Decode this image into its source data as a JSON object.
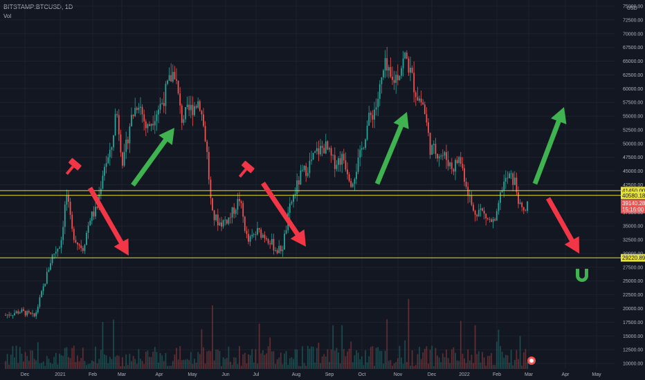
{
  "header": {
    "symbol": "BITSTAMP:BTCUSD",
    "interval": "1D",
    "volume_label": "Vol"
  },
  "axis": {
    "currency": "USD"
  },
  "price_labels": {
    "level1": "41450.00",
    "level2": "40580.18",
    "level3": "29220.89",
    "last_price": "39140.28",
    "countdown": "15:16:00"
  },
  "colors": {
    "bg": "#131722",
    "up": "#26a69a",
    "down": "#ef5350",
    "level": "#e8e23a",
    "arrow_up": "#3fb34f",
    "arrow_down": "#f23645"
  },
  "chart_data": {
    "type": "candlestick",
    "x_tick_labels": [
      "Dec",
      "2021",
      "Feb",
      "Mar",
      "Apr",
      "May",
      "Jun",
      "Jul",
      "Aug",
      "Sep",
      "Oct",
      "Nov",
      "Dec",
      "2022",
      "Feb",
      "Mar",
      "Apr",
      "May"
    ],
    "y_tick_labels": [
      "75000.00",
      "72500.00",
      "70000.00",
      "67500.00",
      "65000.00",
      "62500.00",
      "60000.00",
      "57500.00",
      "55000.00",
      "52500.00",
      "50000.00",
      "47500.00",
      "45000.00",
      "42500.00",
      "37500.00",
      "35000.00",
      "32500.00",
      "30000.00",
      "27500.00",
      "25000.00",
      "22500.00",
      "20000.00",
      "17500.00",
      "15000.00",
      "12500.00",
      "10000.00"
    ],
    "ylim": [
      9000,
      75500
    ],
    "horizontal_levels": [
      41450.0,
      40580.18,
      29220.89
    ],
    "last_price": 39140.28,
    "approx_price_path": [
      {
        "x": "Dec 2020",
        "y": 19000
      },
      {
        "x": "Jan 2021",
        "y": 29000
      },
      {
        "x": "Jan 2021 peak",
        "y": 41000
      },
      {
        "x": "Feb 2021",
        "y": 48000
      },
      {
        "x": "Mar 2021",
        "y": 58000
      },
      {
        "x": "Apr 2021",
        "y": 63500
      },
      {
        "x": "May 2021",
        "y": 58000
      },
      {
        "x": "Jun 2021",
        "y": 35000
      },
      {
        "x": "Jul 2021",
        "y": 30000
      },
      {
        "x": "Aug 2021",
        "y": 47000
      },
      {
        "x": "Sep 2021",
        "y": 43000
      },
      {
        "x": "Oct 2021",
        "y": 61000
      },
      {
        "x": "Nov 2021",
        "y": 68500
      },
      {
        "x": "Dec 2021",
        "y": 48000
      },
      {
        "x": "Jan 2022",
        "y": 36000
      },
      {
        "x": "Feb 2022",
        "y": 44000
      },
      {
        "x": "Mar 2022",
        "y": 39140
      }
    ]
  }
}
